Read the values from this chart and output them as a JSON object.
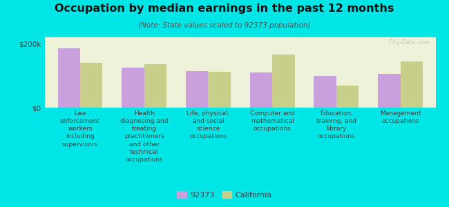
{
  "title": "Occupation by median earnings in the past 12 months",
  "subtitle": "(Note: State values scaled to 92373 population)",
  "categories": [
    "Law\nenforcement\nworkers\nincluding\nsupervisors",
    "Health\ndiagnosing and\ntreating\npractitioners\nand other\ntechnical\noccupations",
    "Life, physical,\nand social\nscience\noccupations",
    "Computer and\nmathematical\noccupations",
    "Education,\ntraining, and\nlibrary\noccupations",
    "Management\noccupations"
  ],
  "values_92373": [
    185000,
    125000,
    115000,
    110000,
    100000,
    105000
  ],
  "values_california": [
    140000,
    135000,
    113000,
    165000,
    70000,
    145000
  ],
  "color_92373": "#c9a0dc",
  "color_california": "#c8cf8a",
  "background_color": "#00e5e5",
  "plot_bg_color": "#edf2d8",
  "ytick_label_200k": "$200k",
  "ytick_label_0": "$0",
  "ylim": [
    0,
    220000
  ],
  "legend_label_92373": "92373",
  "legend_label_california": "California",
  "bar_width": 0.35,
  "title_fontsize": 11.5,
  "subtitle_fontsize": 7.5,
  "tick_fontsize": 6.5,
  "ytick_fontsize": 7.5
}
